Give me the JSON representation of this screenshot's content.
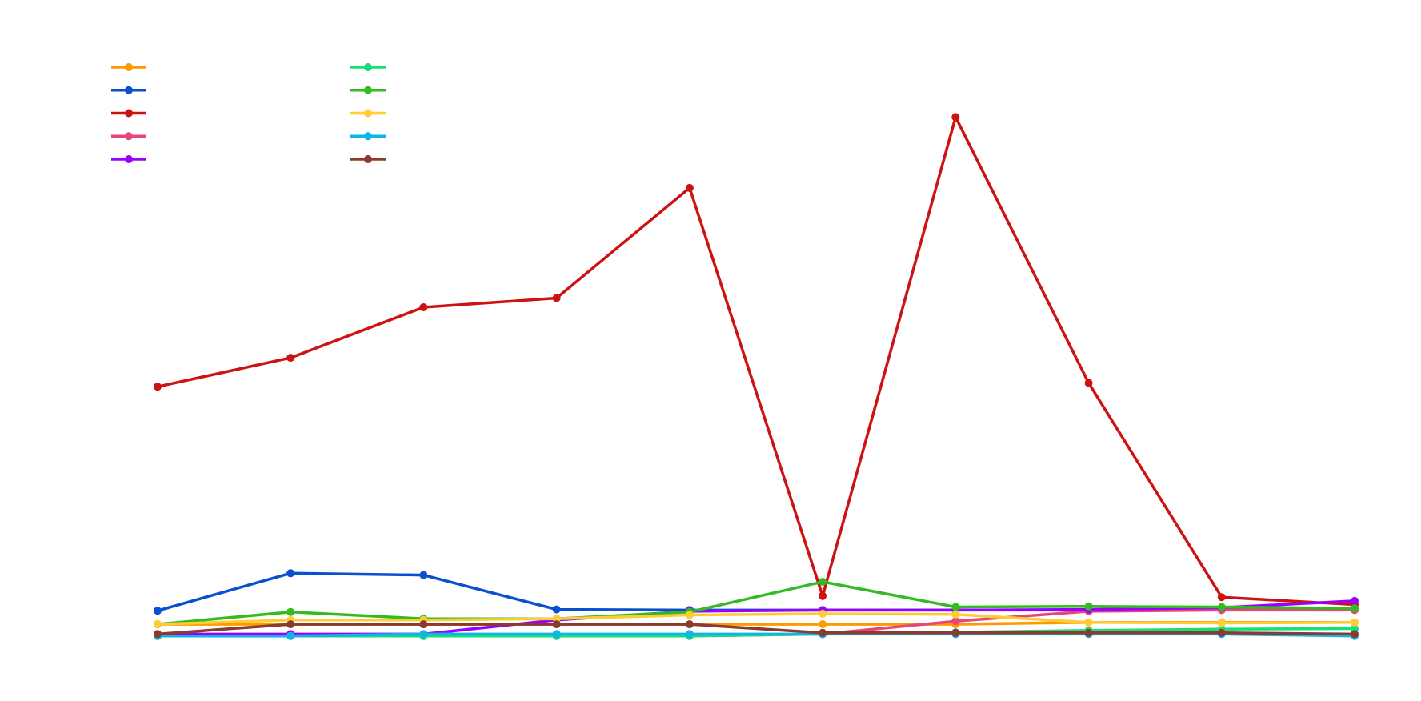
{
  "chart_data": {
    "type": "line",
    "title": "",
    "xlabel": "",
    "ylabel": "",
    "grid": false,
    "legend_position": "top-left",
    "x": [
      1,
      2,
      3,
      4,
      5,
      6,
      7,
      8,
      9,
      10
    ],
    "ylim": [
      0,
      100
    ],
    "series": [
      {
        "color": "#FF9900",
        "values": [
          2.2,
          2.2,
          2.2,
          2.2,
          2.2,
          2.2,
          2.2,
          2.5,
          2.5,
          2.5
        ]
      },
      {
        "color": "#0B4FD1",
        "values": [
          4.4,
          10.5,
          10.2,
          4.6,
          4.5,
          4.5,
          4.5,
          4.5,
          4.6,
          4.8
        ]
      },
      {
        "color": "#CC1212",
        "values": [
          40.8,
          45.5,
          53.7,
          55.2,
          73.1,
          6.8,
          84.6,
          41.4,
          6.6,
          5.4
        ]
      },
      {
        "color": "#E8457A",
        "values": [
          0.3,
          0.3,
          0.3,
          0.3,
          0.3,
          0.6,
          2.7,
          4.3,
          4.5,
          4.5
        ]
      },
      {
        "color": "#9900FF",
        "values": [
          0.6,
          0.6,
          0.6,
          2.9,
          4.3,
          4.5,
          4.5,
          4.6,
          4.9,
          6.0
        ]
      },
      {
        "color": "#12E07A",
        "values": [
          0.3,
          0.3,
          0.3,
          0.3,
          0.3,
          0.6,
          0.9,
          1.2,
          1.4,
          1.5
        ]
      },
      {
        "color": "#33BB22",
        "values": [
          2.2,
          4.2,
          3.1,
          3.1,
          4.2,
          9.1,
          5.0,
          5.1,
          5.0,
          4.8
        ]
      },
      {
        "color": "#FFCC33",
        "values": [
          2.2,
          2.9,
          2.9,
          3.1,
          3.7,
          3.9,
          3.8,
          2.5,
          2.4,
          2.5
        ]
      },
      {
        "color": "#11B4E8",
        "values": [
          0.3,
          0.3,
          0.6,
          0.6,
          0.6,
          0.6,
          0.6,
          0.6,
          0.6,
          0.3
        ]
      },
      {
        "color": "#8B3A2E",
        "values": [
          0.6,
          2.2,
          2.2,
          2.2,
          2.2,
          0.8,
          0.8,
          0.8,
          0.8,
          0.6
        ]
      }
    ]
  }
}
